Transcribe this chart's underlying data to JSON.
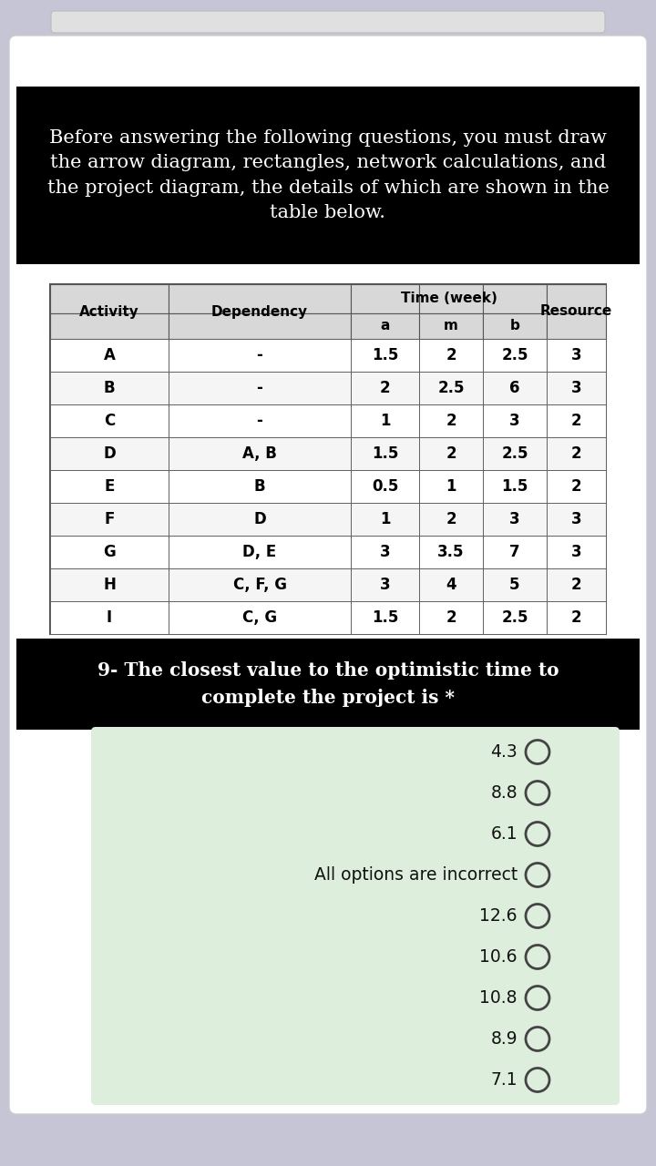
{
  "header_text": "Before answering the following questions, you must draw\nthe arrow diagram, rectangles, network calculations, and\nthe project diagram, the details of which are shown in the\ntable below.",
  "header_bg": "#000000",
  "header_fg": "#ffffff",
  "time_week_label": "Time (week)",
  "table_data": [
    [
      "A",
      "-",
      "1.5",
      "2",
      "2.5",
      "3"
    ],
    [
      "B",
      "-",
      "2",
      "2.5",
      "6",
      "3"
    ],
    [
      "C",
      "-",
      "1",
      "2",
      "3",
      "2"
    ],
    [
      "D",
      "A, B",
      "1.5",
      "2",
      "2.5",
      "2"
    ],
    [
      "E",
      "B",
      "0.5",
      "1",
      "1.5",
      "2"
    ],
    [
      "F",
      "D",
      "1",
      "2",
      "3",
      "3"
    ],
    [
      "G",
      "D, E",
      "3",
      "3.5",
      "7",
      "3"
    ],
    [
      "H",
      "C, F, G",
      "3",
      "4",
      "5",
      "2"
    ],
    [
      "I",
      "C, G",
      "1.5",
      "2",
      "2.5",
      "2"
    ]
  ],
  "question_text": "9- The closest value to the optimistic time to\ncomplete the project is *",
  "question_bg": "#000000",
  "question_fg": "#ffffff",
  "options": [
    "4.3",
    "8.8",
    "6.1",
    "All options are incorrect",
    "12.6",
    "10.6",
    "10.8",
    "8.9",
    "7.1"
  ],
  "bg_outer": "#c5c5d5",
  "bg_white_card": "#ffffff",
  "bg_green": "#ddeedd",
  "table_bg_header": "#d8d8d8",
  "table_bg_body": "#ffffff",
  "table_border": "#555555",
  "scrollbar_color": "#e0e0e0"
}
